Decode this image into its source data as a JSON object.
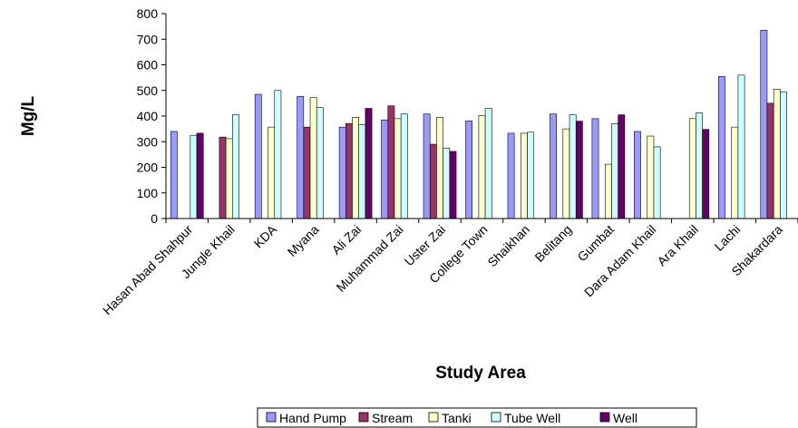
{
  "chart_data": {
    "type": "bar",
    "title": "",
    "xlabel": "Study Area",
    "ylabel": "Mg/L",
    "ylim": [
      0,
      800
    ],
    "yticks": [
      0,
      100,
      200,
      300,
      400,
      500,
      600,
      700,
      800
    ],
    "grid": false,
    "legend_position": "bottom",
    "categories": [
      "Hasan Abad Shahpur",
      "Jungle Khail",
      "KDA",
      "Myana",
      "Ali Zai",
      "Muhammad Zai",
      "Uster Zai",
      "College Town",
      "Shaikhan",
      "Belitang",
      "Gumbat",
      "Dara Adam Khail",
      "Ara Khail",
      "Lachi",
      "Shakardara"
    ],
    "series": [
      {
        "name": "Hand Pump",
        "color": "#9999ff",
        "values": [
          340,
          null,
          485,
          477,
          357,
          385,
          408,
          381,
          333,
          408,
          390,
          340,
          null,
          555,
          735
        ]
      },
      {
        "name": "Stream",
        "color": "#993366",
        "values": [
          null,
          318,
          null,
          357,
          371,
          440,
          290,
          null,
          null,
          null,
          null,
          null,
          null,
          null,
          450
        ]
      },
      {
        "name": "Tanki",
        "color": "#ffffcc",
        "values": [
          null,
          312,
          357,
          472,
          395,
          390,
          395,
          402,
          333,
          350,
          212,
          322,
          390,
          357,
          505
        ]
      },
      {
        "name": "Tube Well",
        "color": "#ccffff",
        "values": [
          325,
          405,
          500,
          433,
          367,
          408,
          275,
          430,
          337,
          405,
          370,
          280,
          413,
          560,
          495
        ]
      },
      {
        "name": "Well",
        "color": "#660066",
        "values": [
          333,
          null,
          null,
          null,
          430,
          null,
          262,
          null,
          null,
          380,
          405,
          null,
          348,
          null,
          null
        ]
      }
    ]
  }
}
